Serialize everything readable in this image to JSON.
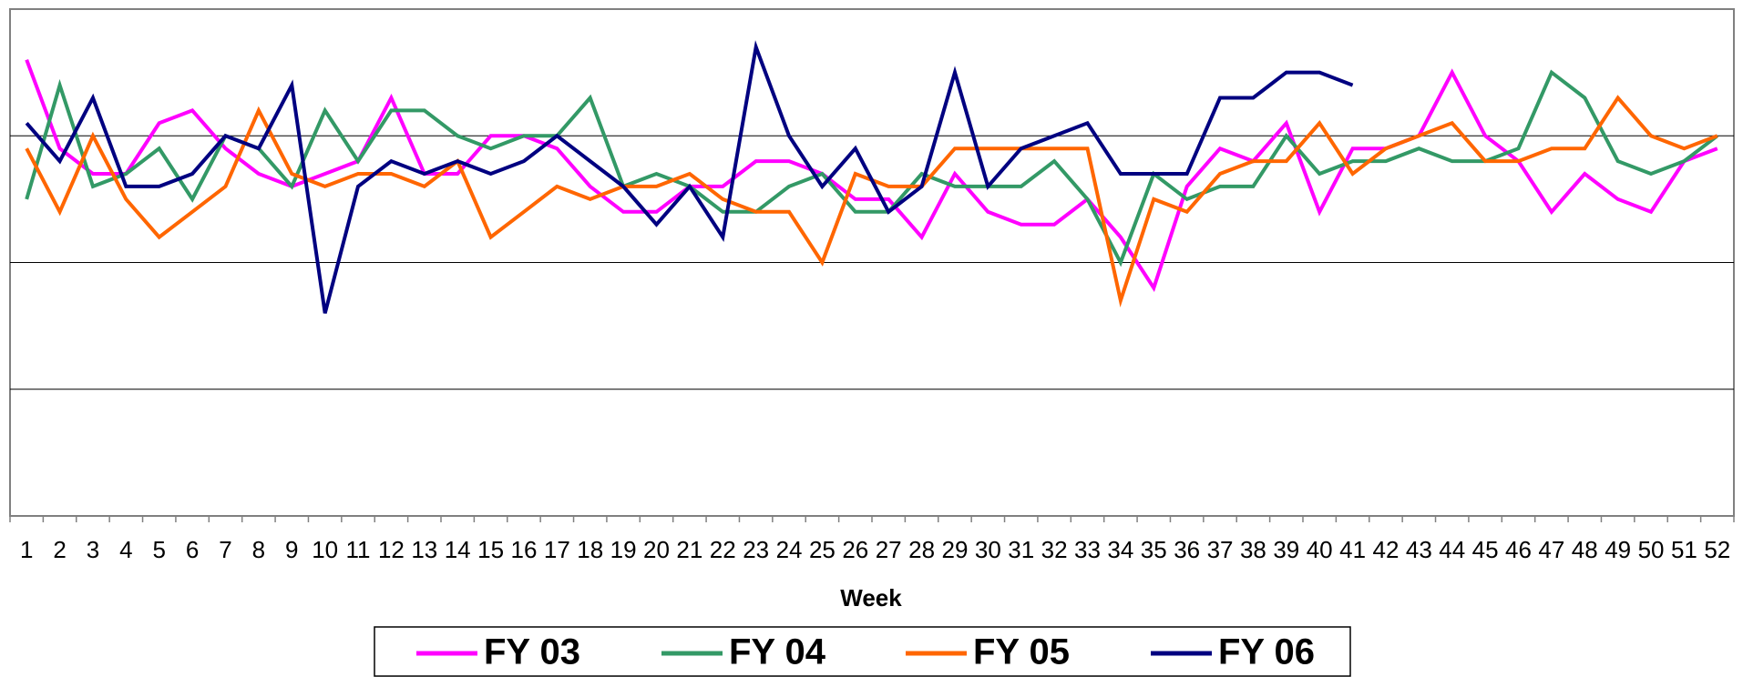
{
  "chart_data": {
    "type": "line",
    "x_label": "Week",
    "categories": [
      "1",
      "2",
      "3",
      "4",
      "5",
      "6",
      "7",
      "8",
      "9",
      "10",
      "11",
      "12",
      "13",
      "14",
      "15",
      "16",
      "17",
      "18",
      "19",
      "20",
      "21",
      "22",
      "23",
      "24",
      "25",
      "26",
      "27",
      "28",
      "29",
      "30",
      "31",
      "32",
      "33",
      "34",
      "35",
      "36",
      "37",
      "38",
      "39",
      "40",
      "41",
      "42",
      "43",
      "44",
      "45",
      "46",
      "47",
      "48",
      "49",
      "50",
      "51",
      "52"
    ],
    "ylim": [
      0,
      4
    ],
    "grid_lines": [
      1,
      2,
      3
    ],
    "legend_position": "bottom",
    "series": [
      {
        "name": "FY 03",
        "color": "#ff00ff",
        "values": [
          3.6,
          2.9,
          2.7,
          2.7,
          3.1,
          3.2,
          2.9,
          2.7,
          2.6,
          2.7,
          2.8,
          3.3,
          2.7,
          2.7,
          3.0,
          3.0,
          2.9,
          2.6,
          2.4,
          2.4,
          2.6,
          2.6,
          2.8,
          2.8,
          2.7,
          2.5,
          2.5,
          2.2,
          2.7,
          2.4,
          2.3,
          2.3,
          2.5,
          2.2,
          1.8,
          2.6,
          2.9,
          2.8,
          3.1,
          2.4,
          2.9,
          2.9,
          3.0,
          3.5,
          3.0,
          2.8,
          2.4,
          2.7,
          2.5,
          2.4,
          2.8,
          2.9
        ]
      },
      {
        "name": "FY 04",
        "color": "#339966",
        "values": [
          2.5,
          3.4,
          2.6,
          2.7,
          2.9,
          2.5,
          3.0,
          2.9,
          2.6,
          3.2,
          2.8,
          3.2,
          3.2,
          3.0,
          2.9,
          3.0,
          3.0,
          3.3,
          2.6,
          2.7,
          2.6,
          2.4,
          2.4,
          2.6,
          2.7,
          2.4,
          2.4,
          2.7,
          2.6,
          2.6,
          2.6,
          2.8,
          2.5,
          2.0,
          2.7,
          2.5,
          2.6,
          2.6,
          3.0,
          2.7,
          2.8,
          2.8,
          2.9,
          2.8,
          2.8,
          2.9,
          3.5,
          3.3,
          2.8,
          2.7,
          2.8,
          3.0
        ]
      },
      {
        "name": "FY 05",
        "color": "#ff6600",
        "values": [
          2.9,
          2.4,
          3.0,
          2.5,
          2.2,
          2.4,
          2.6,
          3.2,
          2.7,
          2.6,
          2.7,
          2.7,
          2.6,
          2.8,
          2.2,
          2.4,
          2.6,
          2.5,
          2.6,
          2.6,
          2.7,
          2.5,
          2.4,
          2.4,
          2.0,
          2.7,
          2.6,
          2.6,
          2.9,
          2.9,
          2.9,
          2.9,
          2.9,
          1.7,
          2.5,
          2.4,
          2.7,
          2.8,
          2.8,
          3.1,
          2.7,
          2.9,
          3.0,
          3.1,
          2.8,
          2.8,
          2.9,
          2.9,
          3.3,
          3.0,
          2.9,
          3.0
        ]
      },
      {
        "name": "FY 06",
        "color": "#000080",
        "values": [
          3.1,
          2.8,
          3.3,
          2.6,
          2.6,
          2.7,
          3.0,
          2.9,
          3.4,
          1.6,
          2.6,
          2.8,
          2.7,
          2.8,
          2.7,
          2.8,
          3.0,
          2.8,
          2.6,
          2.3,
          2.6,
          2.2,
          3.7,
          3.0,
          2.6,
          2.9,
          2.4,
          2.6,
          3.5,
          2.6,
          2.9,
          3.0,
          3.1,
          2.7,
          2.7,
          2.7,
          3.3,
          3.3,
          3.5,
          3.5,
          3.4,
          null,
          null,
          null,
          null,
          null,
          null,
          null,
          null,
          null,
          null,
          null
        ]
      }
    ]
  }
}
